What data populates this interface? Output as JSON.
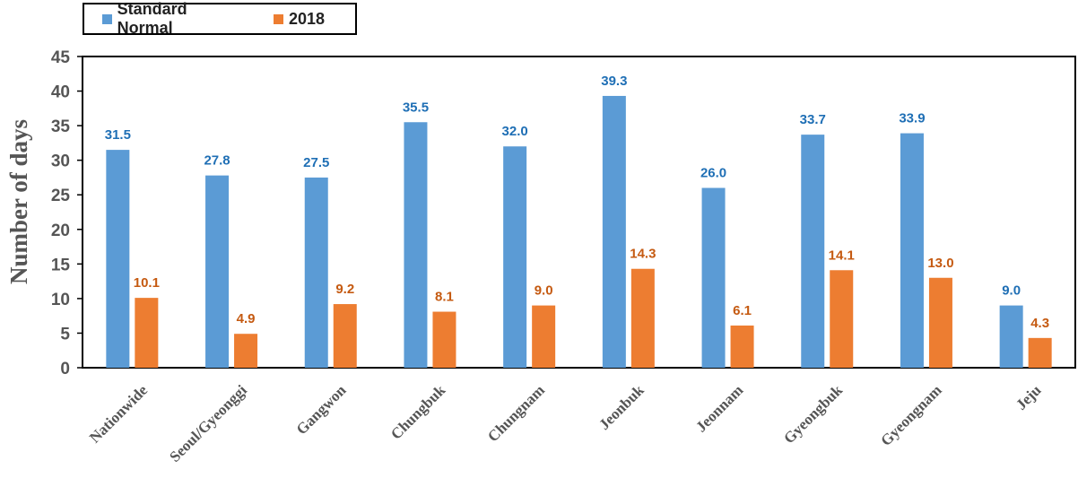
{
  "chart_data": {
    "type": "bar",
    "title": "",
    "xlabel": "",
    "ylabel": "Number of days",
    "ylim": [
      0,
      45
    ],
    "yticks": [
      0,
      5,
      10,
      15,
      20,
      25,
      30,
      35,
      40,
      45
    ],
    "grid": false,
    "legend_position": "top-left",
    "categories": [
      "Nationwide",
      "Seoul/Gyeonggi",
      "Gangwon",
      "Chungbuk",
      "Chungnam",
      "Jeonbuk",
      "Jeonnam",
      "Gyeongbuk",
      "Gyeongnam",
      "Jeju"
    ],
    "series": [
      {
        "name": "Standard Normal",
        "color": "#5b9bd5",
        "label_color": "#1f6fb5",
        "values": [
          31.5,
          27.8,
          27.5,
          35.5,
          32.0,
          39.3,
          26.0,
          33.7,
          33.9,
          9.0
        ],
        "labels": [
          "31.5",
          "27.8",
          "27.5",
          "35.5",
          "32.0",
          "39.3",
          "26.0",
          "33.7",
          "33.9",
          "9.0"
        ]
      },
      {
        "name": "2018",
        "color": "#ed7d31",
        "label_color": "#c55a11",
        "values": [
          10.1,
          4.9,
          9.2,
          8.1,
          9.0,
          14.3,
          6.1,
          14.1,
          13.0,
          4.3
        ],
        "labels": [
          "10.1",
          "4.9",
          "9.2",
          "8.1",
          "9.0",
          "14.3",
          "6.1",
          "14.1",
          "13.0",
          "4.3"
        ]
      }
    ]
  }
}
